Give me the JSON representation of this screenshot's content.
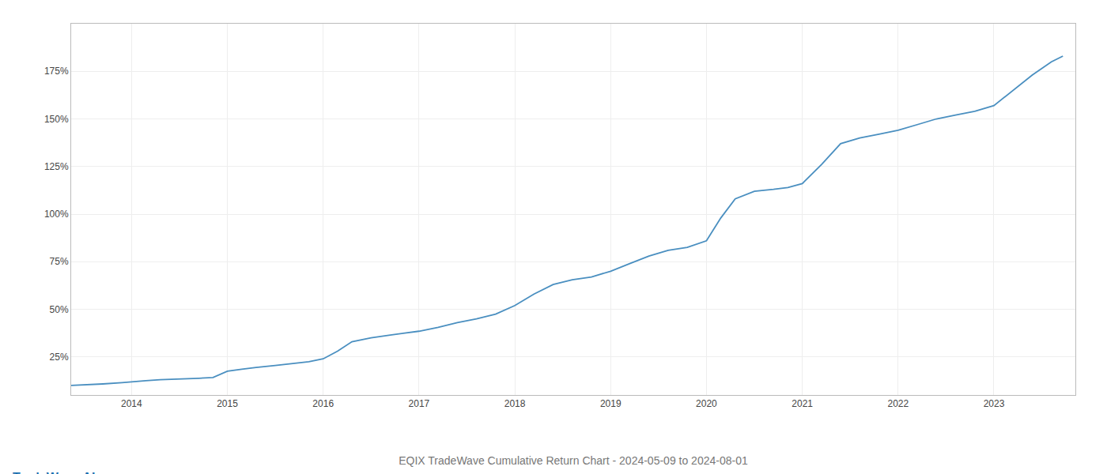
{
  "chart_data": {
    "type": "line",
    "title": "EQIX TradeWave Cumulative Return Chart - 2024-05-09 to 2024-08-01",
    "annotations": [
      "TradeWave.AI"
    ],
    "x": [
      2013.37,
      2013.5,
      2013.7,
      2013.9,
      2014.0,
      2014.15,
      2014.3,
      2014.5,
      2014.7,
      2014.85,
      2015.0,
      2015.15,
      2015.3,
      2015.5,
      2015.7,
      2015.85,
      2016.0,
      2016.15,
      2016.3,
      2016.5,
      2016.7,
      2016.85,
      2017.0,
      2017.2,
      2017.4,
      2017.6,
      2017.8,
      2018.0,
      2018.2,
      2018.4,
      2018.6,
      2018.8,
      2019.0,
      2019.2,
      2019.4,
      2019.6,
      2019.8,
      2020.0,
      2020.15,
      2020.3,
      2020.5,
      2020.7,
      2020.85,
      2021.0,
      2021.2,
      2021.4,
      2021.6,
      2021.8,
      2022.0,
      2022.2,
      2022.4,
      2022.6,
      2022.8,
      2023.0,
      2023.2,
      2023.4,
      2023.6,
      2023.72
    ],
    "values": [
      10.0,
      10.2,
      10.8,
      11.5,
      12.0,
      12.5,
      13.0,
      13.3,
      13.8,
      14.2,
      17.5,
      18.5,
      19.5,
      20.5,
      21.5,
      22.5,
      24.0,
      28.0,
      33.0,
      35.0,
      36.5,
      37.5,
      38.5,
      40.5,
      43.0,
      45.0,
      47.5,
      52.0,
      58.0,
      63.0,
      65.5,
      67.0,
      70.0,
      74.0,
      78.0,
      81.0,
      82.5,
      86.0,
      98.0,
      108.0,
      112.0,
      113.0,
      114.0,
      116.0,
      126.0,
      137.0,
      140.0,
      142.0,
      144.0,
      147.0,
      150.0,
      152.0,
      154.0,
      157.0,
      165.0,
      173.0,
      180.0,
      183.0
    ],
    "color": "#4a8fc0",
    "xlim": [
      2013.37,
      2023.85
    ],
    "xticks": [
      2014,
      2015,
      2016,
      2017,
      2018,
      2019,
      2020,
      2021,
      2022,
      2023
    ],
    "ylim": [
      5,
      200
    ],
    "yticks": [
      {
        "value": 25,
        "label": "25%"
      },
      {
        "value": 50,
        "label": "50%"
      },
      {
        "value": 75,
        "label": "75%"
      },
      {
        "value": 100,
        "label": "100%"
      },
      {
        "value": 125,
        "label": "125%"
      },
      {
        "value": 150,
        "label": "150%"
      },
      {
        "value": 175,
        "label": "175%"
      }
    ],
    "grid": true
  }
}
